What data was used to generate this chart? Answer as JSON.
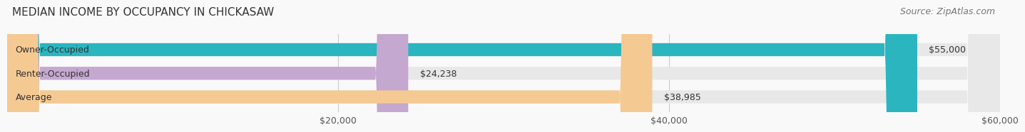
{
  "title": "MEDIAN INCOME BY OCCUPANCY IN CHICKASAW",
  "source": "Source: ZipAtlas.com",
  "categories": [
    "Owner-Occupied",
    "Renter-Occupied",
    "Average"
  ],
  "values": [
    55000,
    24238,
    38985
  ],
  "labels": [
    "$55,000",
    "$24,238",
    "$38,985"
  ],
  "bar_colors": [
    "#2ab5bf",
    "#c4a8d0",
    "#f5c992"
  ],
  "bar_bg_color": "#e8e8e8",
  "xlim": [
    0,
    60000
  ],
  "xticks": [
    0,
    20000,
    40000,
    60000
  ],
  "xtick_labels": [
    "$20,000",
    "$40,000",
    "$60,000"
  ],
  "title_fontsize": 11,
  "source_fontsize": 9,
  "label_fontsize": 9,
  "category_fontsize": 9,
  "bar_height": 0.55,
  "background_color": "#f9f9f9"
}
